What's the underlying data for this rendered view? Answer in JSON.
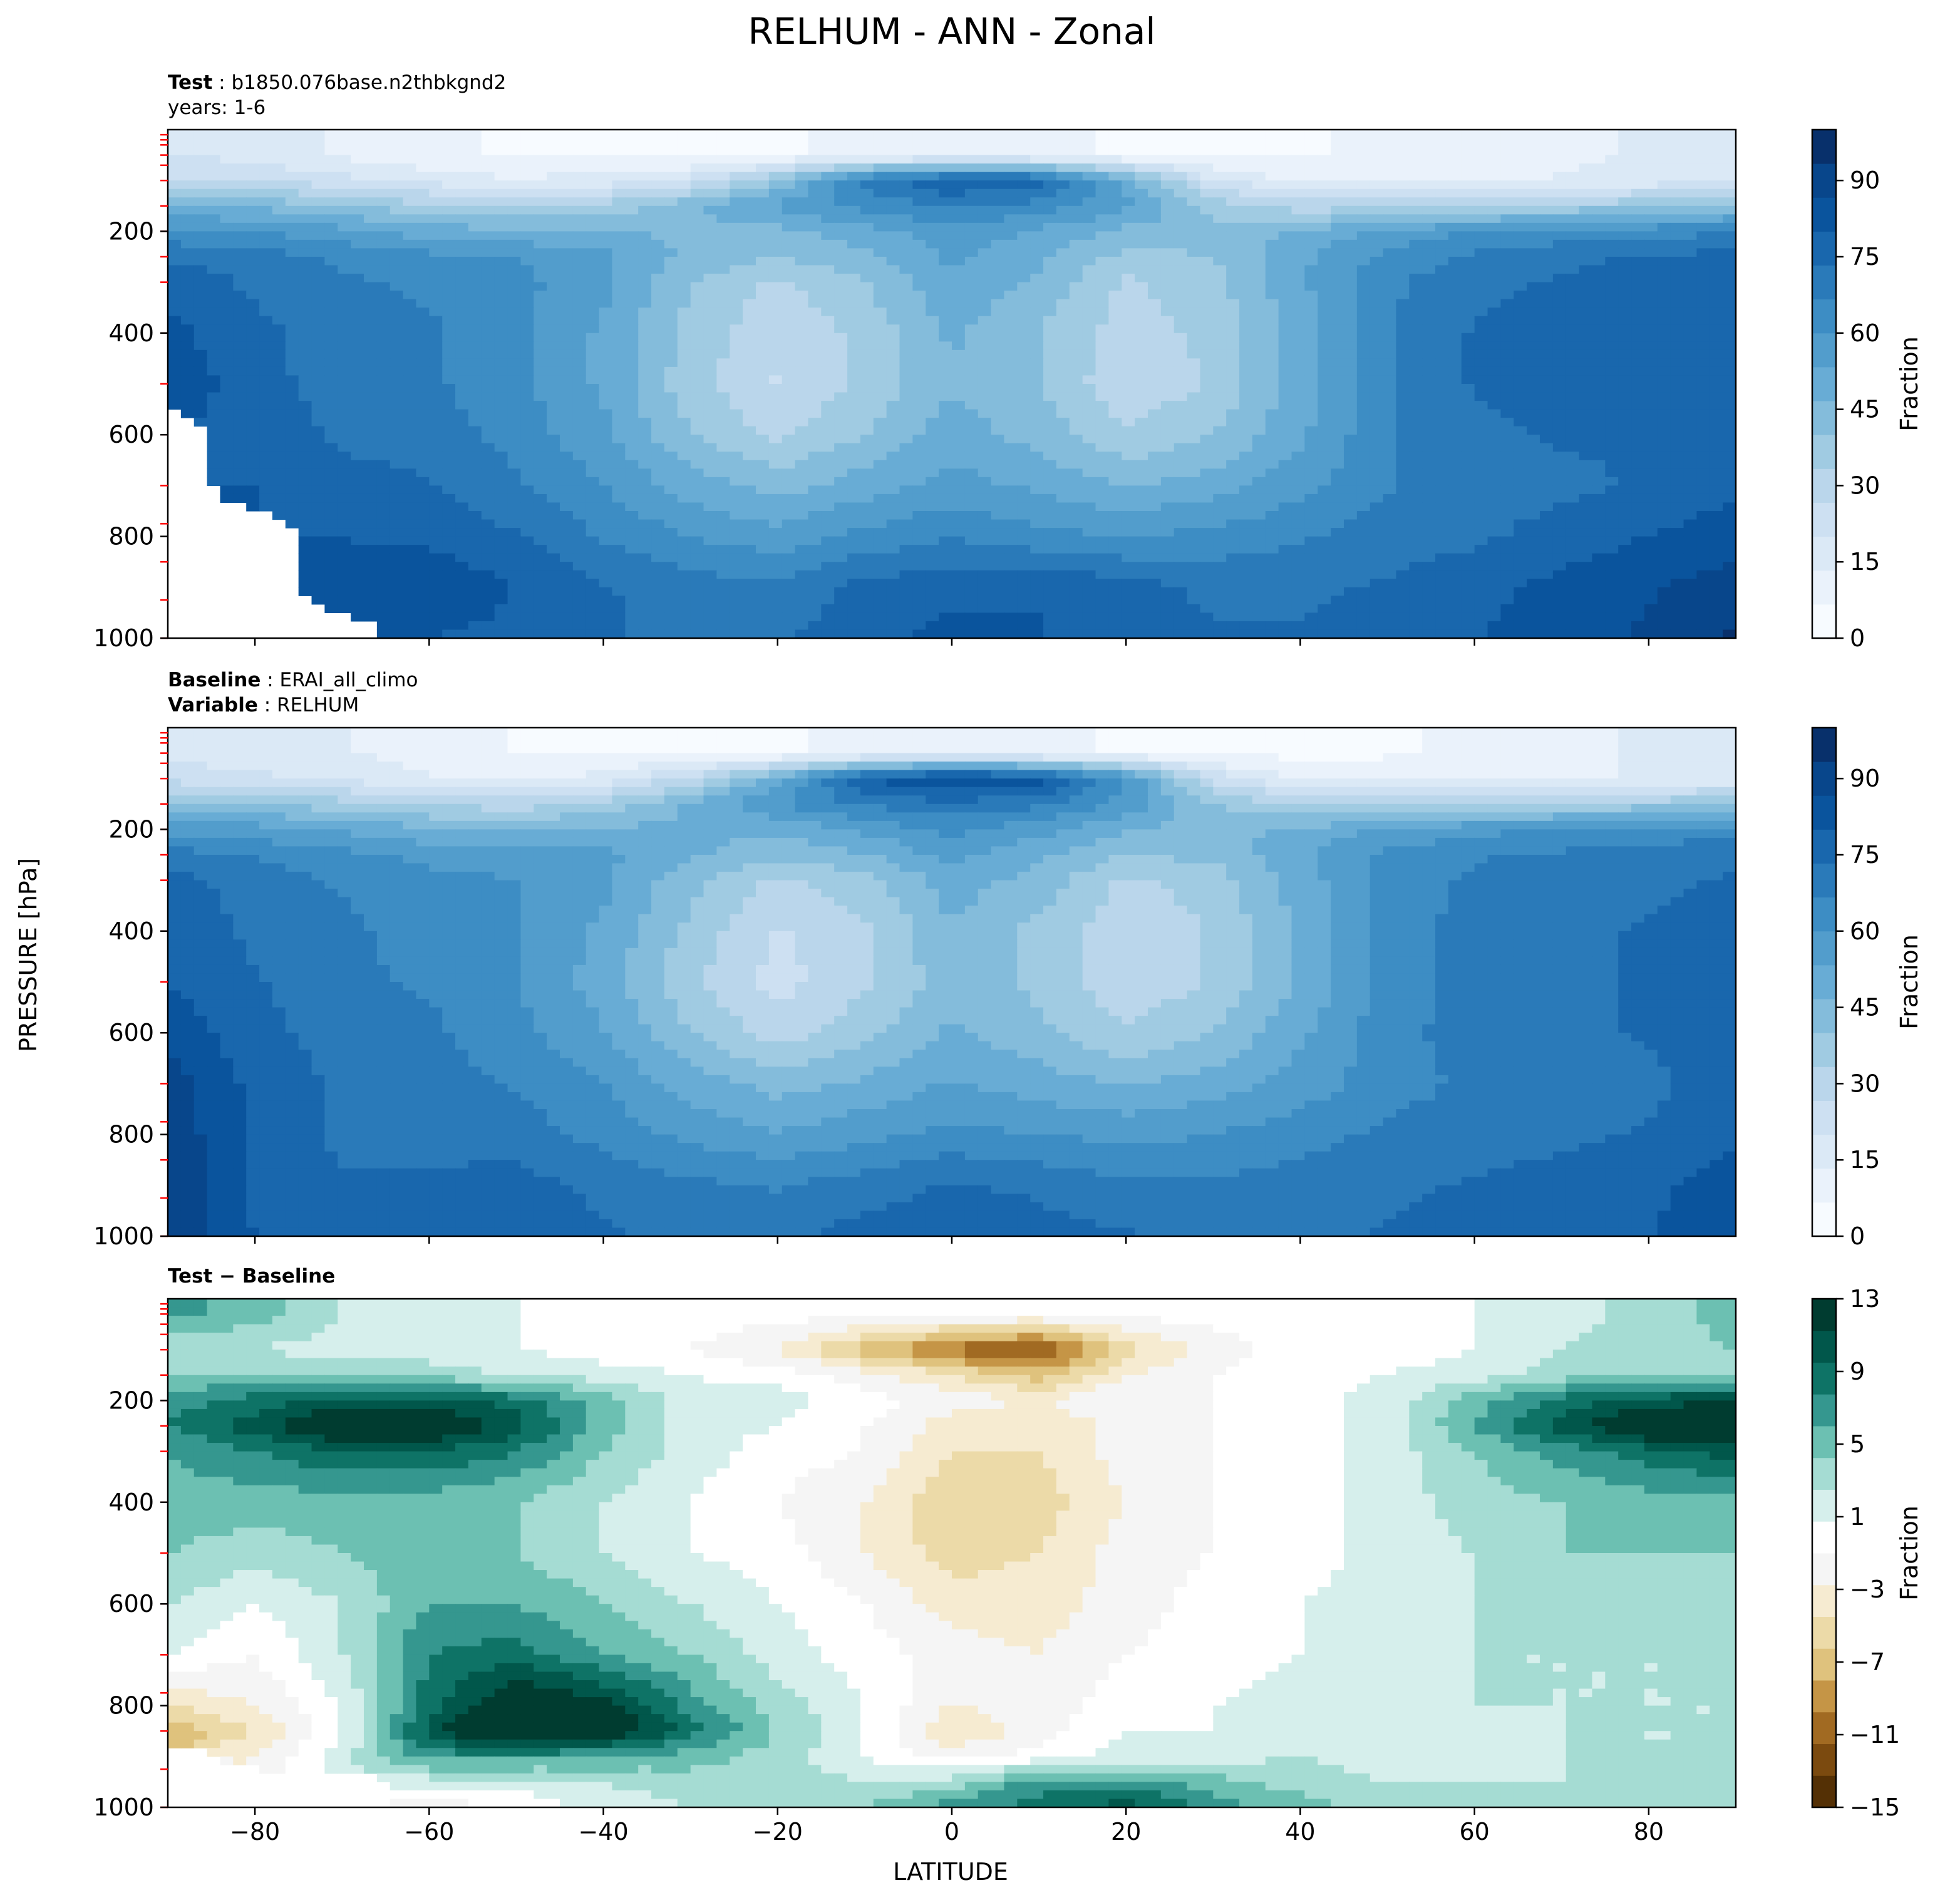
{
  "figure": {
    "title": "RELHUM - ANN - Zonal",
    "ylabel": "PRESSURE [hPa]",
    "xlabel": "LATITUDE"
  },
  "panels": {
    "test": {
      "label1_key": "Test",
      "label1_sep": " : ",
      "label1_val": "b1850.076base.n2thbkgnd2",
      "label2": "years: 1-6"
    },
    "baseline": {
      "label1_key": "Baseline",
      "label1_sep": " : ",
      "label1_val": "ERAI_all_climo",
      "label2_key": "Variable",
      "label2_sep": " : ",
      "label2_val": "RELHUM"
    },
    "diff": {
      "label_key": "Test − Baseline"
    }
  },
  "colors": {
    "blues": [
      "#f7fbff",
      "#eaf2fb",
      "#dbe9f6",
      "#cde0f2",
      "#bad6eb",
      "#a0cbe2",
      "#84bcdb",
      "#68acd5",
      "#529dcc",
      "#3d8dc4",
      "#2a7ab9",
      "#1967ad",
      "#0a549d",
      "#08468b",
      "#08306b"
    ],
    "diverging": [
      "#543005",
      "#7b4a0f",
      "#a16a22",
      "#c59546",
      "#dfc27d",
      "#ecdaa8",
      "#f6ebd1",
      "#f5f5f5",
      "#ffffff",
      "#d6efec",
      "#a5dcd3",
      "#6cc0b2",
      "#35978f",
      "#0e7366",
      "#01574b",
      "#003c30"
    ],
    "no_data": "#ffffff",
    "tick_marker": "#ff0000"
  },
  "chart_data": [
    {
      "type": "heatmap",
      "panel": "test",
      "xlim": [
        -90,
        90
      ],
      "ylim": [
        1000,
        0
      ],
      "x_ticks": [
        -80,
        -60,
        -40,
        -20,
        0,
        20,
        40,
        60,
        80
      ],
      "y_ticks": [
        200,
        400,
        600,
        800,
        1000
      ],
      "colorbar": {
        "label": "Fraction",
        "ticks": [
          0,
          15,
          30,
          45,
          60,
          75,
          90
        ],
        "range": [
          0,
          100
        ]
      },
      "grid": "off",
      "x": [
        -90,
        -80,
        -70,
        -60,
        -50,
        -40,
        -30,
        -20,
        -10,
        0,
        10,
        20,
        30,
        40,
        50,
        60,
        70,
        80,
        90
      ],
      "y": [
        50,
        100,
        150,
        200,
        250,
        300,
        400,
        500,
        600,
        700,
        800,
        900,
        1000
      ],
      "z": [
        [
          20,
          18,
          12,
          8,
          6,
          6,
          5,
          6,
          8,
          10,
          8,
          6,
          5,
          6,
          8,
          10,
          12,
          14,
          16
        ],
        [
          28,
          26,
          22,
          18,
          14,
          16,
          22,
          40,
          70,
          80,
          78,
          50,
          20,
          12,
          10,
          12,
          14,
          16,
          18
        ],
        [
          48,
          45,
          40,
          35,
          32,
          35,
          45,
          55,
          62,
          68,
          64,
          55,
          38,
          30,
          30,
          32,
          35,
          38,
          42
        ],
        [
          62,
          60,
          56,
          50,
          48,
          48,
          45,
          45,
          50,
          58,
          52,
          45,
          42,
          48,
          55,
          60,
          62,
          64,
          66
        ],
        [
          72,
          70,
          65,
          62,
          60,
          55,
          45,
          40,
          45,
          55,
          48,
          38,
          40,
          52,
          62,
          68,
          72,
          74,
          76
        ],
        [
          78,
          72,
          68,
          65,
          62,
          55,
          40,
          32,
          40,
          52,
          45,
          32,
          38,
          52,
          65,
          72,
          74,
          76,
          78
        ],
        [
          82,
          75,
          70,
          68,
          62,
          52,
          38,
          28,
          35,
          48,
          40,
          30,
          35,
          50,
          66,
          74,
          76,
          78,
          80
        ],
        [
          85,
          76,
          70,
          68,
          62,
          52,
          36,
          26,
          35,
          46,
          40,
          28,
          34,
          50,
          66,
          74,
          76,
          78,
          80
        ],
        [
          null,
          78,
          72,
          70,
          64,
          55,
          40,
          32,
          40,
          50,
          44,
          34,
          40,
          52,
          66,
          72,
          74,
          74,
          76
        ],
        [
          null,
          80,
          76,
          74,
          68,
          60,
          50,
          44,
          50,
          56,
          52,
          46,
          50,
          58,
          66,
          70,
          72,
          74,
          78
        ],
        [
          null,
          null,
          80,
          78,
          74,
          66,
          60,
          56,
          62,
          66,
          62,
          60,
          62,
          66,
          70,
          72,
          76,
          80,
          84
        ],
        [
          null,
          null,
          82,
          86,
          80,
          74,
          70,
          68,
          76,
          78,
          80,
          76,
          72,
          72,
          74,
          78,
          82,
          86,
          90
        ],
        [
          null,
          null,
          null,
          80,
          78,
          74,
          72,
          72,
          78,
          82,
          80,
          76,
          74,
          74,
          78,
          80,
          82,
          88,
          95
        ]
      ]
    },
    {
      "type": "heatmap",
      "panel": "baseline",
      "xlim": [
        -90,
        90
      ],
      "ylim": [
        1000,
        0
      ],
      "x_ticks": [
        -80,
        -60,
        -40,
        -20,
        0,
        20,
        40,
        60,
        80
      ],
      "y_ticks": [
        200,
        400,
        600,
        800,
        1000
      ],
      "colorbar": {
        "label": "Fraction",
        "ticks": [
          0,
          15,
          30,
          45,
          60,
          75,
          90
        ],
        "range": [
          0,
          100
        ]
      },
      "grid": "off",
      "x": [
        -90,
        -80,
        -70,
        -60,
        -50,
        -40,
        -30,
        -20,
        -10,
        0,
        10,
        20,
        30,
        40,
        50,
        60,
        70,
        80,
        90
      ],
      "y": [
        50,
        100,
        150,
        200,
        250,
        300,
        400,
        500,
        600,
        700,
        800,
        900,
        1000
      ],
      "z": [
        [
          18,
          16,
          14,
          10,
          6,
          5,
          5,
          6,
          8,
          10,
          8,
          6,
          5,
          5,
          6,
          8,
          12,
          14,
          16
        ],
        [
          24,
          22,
          18,
          14,
          12,
          16,
          28,
          50,
          80,
          88,
          84,
          60,
          24,
          12,
          10,
          10,
          12,
          14,
          16
        ],
        [
          42,
          40,
          36,
          32,
          30,
          35,
          48,
          60,
          68,
          72,
          68,
          58,
          40,
          32,
          30,
          32,
          34,
          36,
          40
        ],
        [
          58,
          56,
          52,
          48,
          46,
          48,
          48,
          48,
          55,
          62,
          56,
          48,
          44,
          48,
          54,
          58,
          60,
          62,
          64
        ],
        [
          70,
          66,
          62,
          58,
          58,
          55,
          48,
          42,
          46,
          56,
          48,
          40,
          42,
          52,
          62,
          66,
          68,
          70,
          72
        ],
        [
          76,
          70,
          66,
          62,
          60,
          55,
          42,
          32,
          38,
          50,
          44,
          32,
          36,
          50,
          62,
          68,
          70,
          72,
          74
        ],
        [
          78,
          72,
          68,
          64,
          60,
          52,
          38,
          26,
          32,
          46,
          38,
          28,
          34,
          48,
          62,
          70,
          72,
          74,
          76
        ],
        [
          80,
          74,
          68,
          66,
          60,
          50,
          35,
          24,
          32,
          44,
          38,
          28,
          34,
          48,
          62,
          70,
          72,
          74,
          76
        ],
        [
          84,
          76,
          70,
          68,
          62,
          54,
          40,
          30,
          38,
          48,
          42,
          34,
          40,
          52,
          64,
          70,
          72,
          74,
          76
        ],
        [
          90,
          78,
          72,
          70,
          66,
          60,
          50,
          44,
          48,
          54,
          50,
          46,
          50,
          56,
          64,
          68,
          70,
          72,
          76
        ],
        [
          92,
          78,
          72,
          72,
          70,
          64,
          58,
          54,
          58,
          62,
          60,
          58,
          60,
          64,
          68,
          70,
          72,
          74,
          78
        ],
        [
          92,
          78,
          74,
          74,
          76,
          72,
          68,
          66,
          70,
          74,
          72,
          68,
          68,
          70,
          72,
          74,
          76,
          78,
          84
        ],
        [
          92,
          80,
          76,
          76,
          76,
          74,
          72,
          72,
          76,
          78,
          76,
          74,
          72,
          72,
          74,
          76,
          78,
          80,
          86
        ]
      ]
    },
    {
      "type": "heatmap",
      "panel": "diff",
      "xlim": [
        -90,
        90
      ],
      "ylim": [
        1000,
        0
      ],
      "x_ticks": [
        -80,
        -60,
        -40,
        -20,
        0,
        20,
        40,
        60,
        80
      ],
      "y_ticks": [
        200,
        400,
        600,
        800,
        1000
      ],
      "colorbar": {
        "label": "Fraction",
        "ticks": [
          13,
          9,
          5,
          1,
          -3,
          -7,
          -11,
          -15
        ],
        "levels": [
          -15,
          -13,
          -11,
          -9,
          -7,
          -5,
          -3,
          -1,
          1,
          3,
          5,
          7,
          9,
          11,
          13
        ]
      },
      "grid": "off",
      "x": [
        -90,
        -80,
        -70,
        -60,
        -50,
        -40,
        -30,
        -20,
        -10,
        0,
        10,
        20,
        30,
        40,
        50,
        60,
        70,
        80,
        90
      ],
      "y": [
        25,
        100,
        150,
        200,
        250,
        300,
        400,
        500,
        600,
        700,
        800,
        850,
        900,
        950,
        1000
      ],
      "z": [
        [
          8,
          6,
          3,
          2,
          1,
          0,
          0,
          0,
          0,
          0,
          0,
          0,
          0,
          0,
          0,
          1,
          2,
          4,
          6
        ],
        [
          3,
          3,
          2,
          2,
          1,
          0,
          -1,
          -3,
          -8,
          -12,
          -14,
          -6,
          -2,
          0,
          0,
          1,
          3,
          4,
          5
        ],
        [
          5,
          5,
          5,
          4,
          3,
          2,
          1,
          0,
          -2,
          -5,
          -8,
          -3,
          -1,
          0,
          1,
          2,
          4,
          5,
          5
        ],
        [
          8,
          10,
          12,
          12,
          10,
          6,
          2,
          2,
          0,
          -2,
          -3,
          -1,
          -1,
          0,
          2,
          6,
          10,
          12,
          13
        ],
        [
          9,
          12,
          16,
          16,
          12,
          6,
          2,
          1,
          -1,
          -4,
          -5,
          -2,
          -1,
          0,
          2,
          7,
          12,
          16,
          16
        ],
        [
          7,
          9,
          11,
          11,
          9,
          5,
          2,
          0,
          -1,
          -5,
          -5,
          -2,
          -1,
          0,
          2,
          5,
          8,
          10,
          12
        ],
        [
          6,
          6,
          6,
          6,
          5,
          3,
          1,
          -1,
          -3,
          -7,
          -6,
          -3,
          -1,
          0,
          2,
          4,
          5,
          6,
          6
        ],
        [
          5,
          4,
          5,
          6,
          5,
          3,
          1,
          0,
          -3,
          -6,
          -5,
          -2,
          -1,
          0,
          2,
          3,
          5,
          5,
          5
        ],
        [
          3,
          1,
          3,
          7,
          7,
          5,
          3,
          1,
          -1,
          -4,
          -4,
          -2,
          0,
          1,
          2,
          3,
          4,
          4,
          4
        ],
        [
          1,
          -1,
          3,
          9,
          10,
          7,
          5,
          2,
          0,
          -2,
          -3,
          -1,
          0,
          1,
          2,
          3,
          3,
          3,
          3
        ],
        [
          -5,
          -3,
          1,
          10,
          16,
          14,
          8,
          4,
          1,
          -3,
          -2,
          0,
          1,
          2,
          2,
          3,
          3,
          3,
          3
        ],
        [
          -9,
          -5,
          1,
          12,
          18,
          16,
          10,
          5,
          1,
          -5,
          -2,
          1,
          1,
          2,
          2,
          2,
          3,
          3,
          3
        ],
        [
          null,
          -3,
          2,
          8,
          8,
          7,
          6,
          4,
          1,
          -2,
          0,
          2,
          2,
          3,
          2,
          2,
          3,
          3,
          3
        ],
        [
          null,
          null,
          null,
          2,
          2,
          3,
          4,
          4,
          3,
          4,
          8,
          8,
          6,
          4,
          3,
          3,
          3,
          4,
          4
        ],
        [
          null,
          null,
          null,
          -2,
          -1,
          2,
          3,
          4,
          5,
          8,
          10,
          12,
          8,
          6,
          4,
          3,
          4,
          5,
          5
        ]
      ]
    }
  ]
}
